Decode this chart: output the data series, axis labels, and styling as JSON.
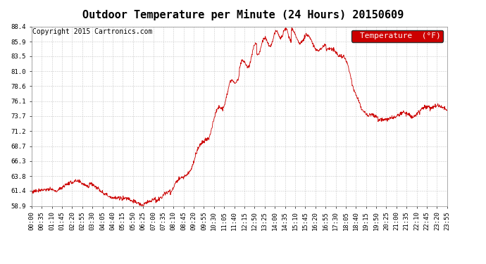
{
  "title": "Outdoor Temperature per Minute (24 Hours) 20150609",
  "copyright": "Copyright 2015 Cartronics.com",
  "legend_label": "Temperature  (°F)",
  "line_color": "#cc0000",
  "background_color": "#ffffff",
  "grid_color": "#bbbbbb",
  "ytick_labels": [
    "58.9",
    "61.4",
    "63.8",
    "66.3",
    "68.7",
    "71.2",
    "73.7",
    "76.1",
    "78.6",
    "81.0",
    "83.5",
    "85.9",
    "88.4"
  ],
  "ytick_values": [
    58.9,
    61.4,
    63.8,
    66.3,
    68.7,
    71.2,
    73.7,
    76.1,
    78.6,
    81.0,
    83.5,
    85.9,
    88.4
  ],
  "ymin": 58.9,
  "ymax": 88.4,
  "xtick_labels": [
    "00:00",
    "00:35",
    "01:10",
    "01:45",
    "02:20",
    "02:55",
    "03:30",
    "04:05",
    "04:40",
    "05:15",
    "05:50",
    "06:25",
    "07:00",
    "07:35",
    "08:10",
    "08:45",
    "09:20",
    "09:55",
    "10:30",
    "11:05",
    "11:40",
    "12:15",
    "12:50",
    "13:25",
    "14:00",
    "14:35",
    "15:10",
    "15:45",
    "16:20",
    "16:55",
    "17:30",
    "18:05",
    "18:40",
    "19:15",
    "19:50",
    "20:25",
    "21:00",
    "21:35",
    "22:10",
    "22:45",
    "23:20",
    "23:55"
  ],
  "title_fontsize": 11,
  "axis_fontsize": 6.5,
  "copyright_fontsize": 7,
  "legend_fontsize": 8
}
